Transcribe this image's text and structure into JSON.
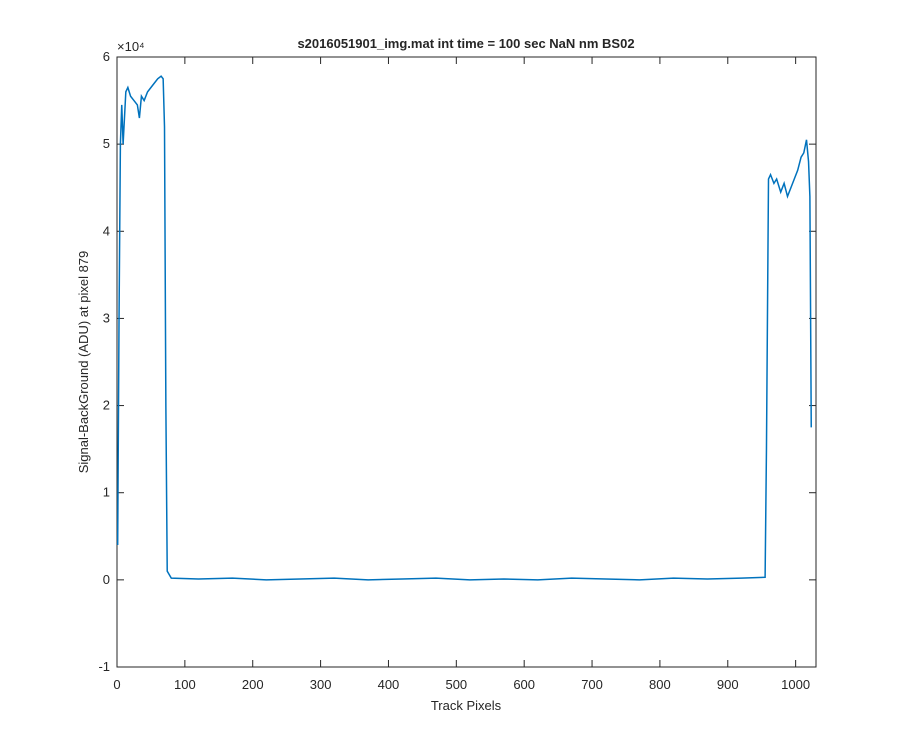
{
  "chart_data": {
    "type": "line",
    "title": "s2016051901_img.mat int time = 100 sec  NaN nm BS02",
    "x_label": "Track Pixels",
    "y_label": "Signal-BackGround (ADU) at pixel 879",
    "y_exponent_label": "×10⁴",
    "x": [
      1,
      3,
      5,
      7,
      9,
      11,
      13,
      16,
      20,
      25,
      30,
      33,
      36,
      40,
      45,
      50,
      55,
      60,
      65,
      68,
      70,
      72,
      74,
      80,
      120,
      170,
      220,
      270,
      320,
      370,
      420,
      470,
      520,
      570,
      620,
      670,
      720,
      770,
      820,
      870,
      920,
      955,
      957,
      960,
      963,
      968,
      972,
      978,
      983,
      988,
      993,
      998,
      1003,
      1008,
      1012,
      1016,
      1019,
      1021,
      1023
    ],
    "values": [
      0.4,
      3.0,
      5.0,
      5.45,
      5.0,
      5.3,
      5.6,
      5.65,
      5.55,
      5.5,
      5.45,
      5.3,
      5.55,
      5.5,
      5.6,
      5.65,
      5.7,
      5.75,
      5.78,
      5.75,
      5.2,
      2.0,
      0.1,
      0.02,
      0.01,
      0.02,
      0.0,
      0.01,
      0.02,
      0.0,
      0.01,
      0.02,
      0.0,
      0.01,
      0.0,
      0.02,
      0.01,
      0.0,
      0.02,
      0.01,
      0.02,
      0.03,
      1.5,
      4.6,
      4.65,
      4.55,
      4.6,
      4.45,
      4.55,
      4.4,
      4.5,
      4.6,
      4.7,
      4.85,
      4.9,
      5.05,
      4.8,
      4.4,
      1.75
    ],
    "color": "#0072bd",
    "xlim": [
      0,
      1030
    ],
    "xticks": [
      0,
      100,
      200,
      300,
      400,
      500,
      600,
      700,
      800,
      900,
      1000
    ],
    "ylim": [
      -1,
      6
    ],
    "yticks": [
      -1,
      0,
      1,
      2,
      3,
      4,
      5,
      6
    ],
    "grid": false
  }
}
